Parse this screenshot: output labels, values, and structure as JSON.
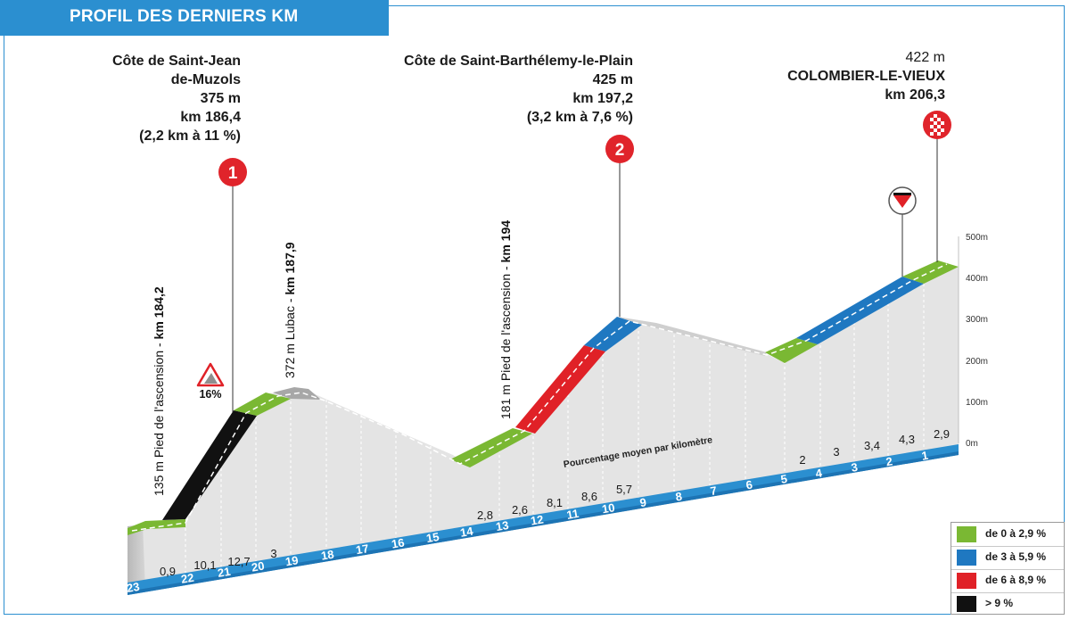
{
  "title": "PROFIL DES DERNIERS KM",
  "climbs": [
    {
      "line1": "Côte de Saint-Jean",
      "line2": "de-Muzols",
      "altitude": "375 m",
      "km": "km 186,4",
      "detail": "(2,2 km à 11 %)",
      "marker": "1"
    },
    {
      "line1": "Côte de Saint-Barthélemy-le-Plain",
      "altitude": "425 m",
      "km": "km 197,2",
      "detail": "(3,2 km à 7,6 %)",
      "marker": "2"
    }
  ],
  "finish": {
    "altitude": "422 m",
    "name": "COLOMBIER-LE-VIEUX",
    "km": "km 206,3"
  },
  "waypoints": {
    "foot1_alt": "135 m",
    "foot1_text": "Pied de l'ascension - ",
    "foot1_km": "km 184,2",
    "lubac_text": "372 m Lubac - ",
    "lubac_km": "km 187,9",
    "foot2_alt": "181 m",
    "foot2_text": "Pied de l'ascension - ",
    "foot2_km": "km 194"
  },
  "steep_badge": "16%",
  "avg_caption": "Pourcentage moyen par kilomètre",
  "y_axis": [
    "500m",
    "400m",
    "300m",
    "200m",
    "100m",
    "0m"
  ],
  "km_labels": [
    "23",
    "22",
    "21",
    "20",
    "19",
    "18",
    "17",
    "16",
    "15",
    "14",
    "13",
    "12",
    "11",
    "10",
    "9",
    "8",
    "7",
    "6",
    "5",
    "4",
    "3",
    "2",
    "1"
  ],
  "gradients": [
    "0,9",
    "10,1",
    "12,7",
    "3",
    "2,8",
    "2,6",
    "8,1",
    "8,6",
    "5,7",
    "2",
    "3",
    "3,4",
    "4,3",
    "2,9"
  ],
  "legend": [
    {
      "color": "#7ab833",
      "label": "de 0 à 2,9 %"
    },
    {
      "color": "#1f78c1",
      "label": "de 3 à 5,9 %"
    },
    {
      "color": "#e02127",
      "label": "de 6 à 8,9 %"
    },
    {
      "color": "#111111",
      "label": "> 9 %"
    }
  ],
  "colors": {
    "accent": "#2b8fd0",
    "green": "#7ab833",
    "blue": "#1f78c1",
    "red": "#e02127",
    "black": "#111111",
    "marker_red": "#e0242b"
  }
}
